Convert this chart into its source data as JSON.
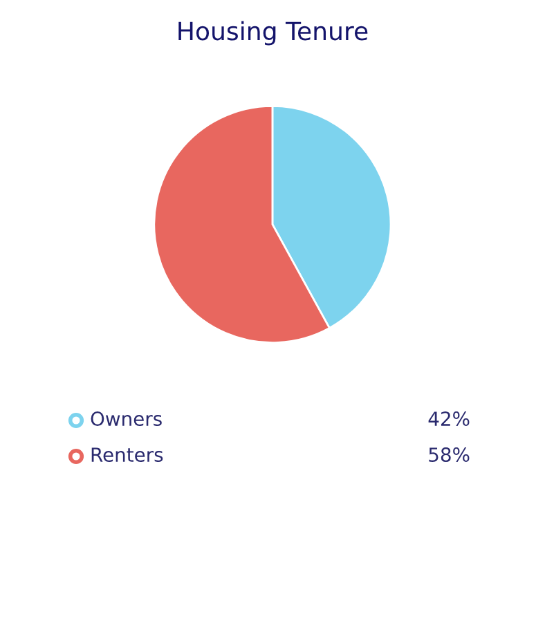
{
  "chart_data": {
    "type": "pie",
    "title": "Housing Tenure",
    "categories": [
      "Owners",
      "Renters"
    ],
    "values": [
      42,
      58
    ],
    "colors": [
      "#7dd3ee",
      "#e8675f"
    ],
    "value_labels": [
      "42%",
      "58%"
    ],
    "legend": "bottom"
  }
}
